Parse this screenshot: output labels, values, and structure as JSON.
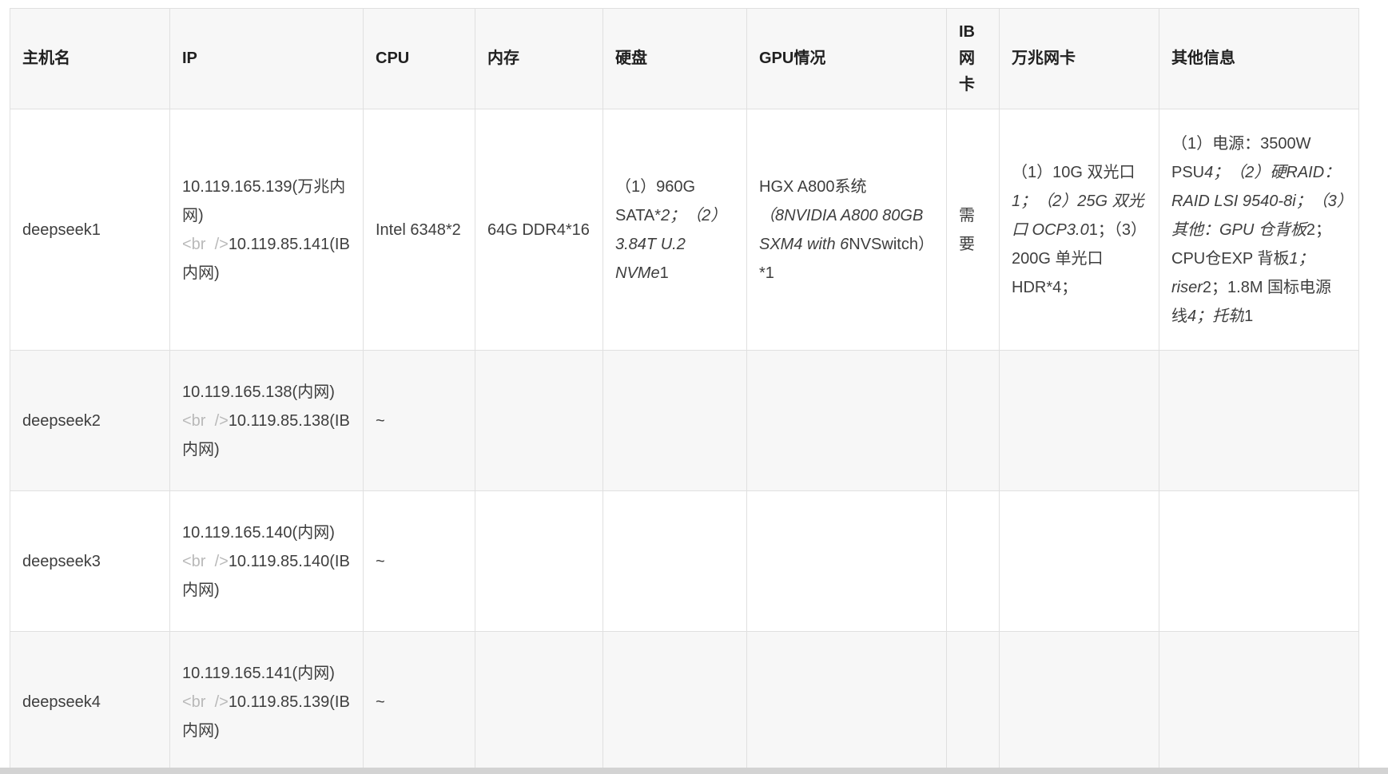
{
  "colors": {
    "header_bg": "#f7f7f7",
    "stripe_bg": "#f7f7f7",
    "border": "#e0e0e0",
    "text": "#3e3e3e",
    "header_text": "#212121",
    "br_tag_text": "#b9b9b9",
    "bottom_bar": "#d3d3d3"
  },
  "table": {
    "columns": [
      {
        "label": "主机名"
      },
      {
        "label": "IP"
      },
      {
        "label": "CPU"
      },
      {
        "label": "内存"
      },
      {
        "label": "硬盘"
      },
      {
        "label": "GPU情况"
      },
      {
        "label": "IB 网卡"
      },
      {
        "label": "万兆网卡"
      },
      {
        "label": "其他信息"
      }
    ],
    "rows": [
      {
        "hostname": [
          {
            "t": "deepseek1"
          }
        ],
        "ip": [
          {
            "t": "10.119.165.139(万兆内网)"
          },
          {
            "t": "<br  />",
            "s": "g"
          },
          {
            "t": "10.119.85.141(IB内网)"
          }
        ],
        "cpu": [
          {
            "t": "Intel 6348*2"
          }
        ],
        "memory": [
          {
            "t": "64G DDR4*16"
          }
        ],
        "disk": [
          {
            "t": "（1）960G SATA*"
          },
          {
            "t": "2；（2）3.84T U.2 NVMe",
            "s": "i"
          },
          {
            "t": "1"
          }
        ],
        "gpu": [
          {
            "t": "HGX A800系统"
          },
          {
            "t": "（8NVIDIA A800 80GB SXM4 with 6",
            "s": "i"
          },
          {
            "t": "NVSwitch）*1"
          }
        ],
        "ib": [
          {
            "t": "需要"
          }
        ],
        "nic10g": [
          {
            "t": "（1）10G 双光口"
          },
          {
            "t": "1；（2）25G 双光口 OCP3.0",
            "s": "i"
          },
          {
            "t": "1；（3）200G 单光口HDR*4；"
          }
        ],
        "other": [
          {
            "t": "（1）电源：3500W PSU"
          },
          {
            "t": "4；（2）硬RAID：RAID LSI 9540-8i；（3）其他：GPU 仓背板",
            "s": "i"
          },
          {
            "t": "2；CPU仓EXP 背板"
          },
          {
            "t": "1；riser",
            "s": "i"
          },
          {
            "t": "2；1.8M 国标电源线"
          },
          {
            "t": "4；托轨",
            "s": "i"
          },
          {
            "t": "1"
          }
        ]
      },
      {
        "hostname": [
          {
            "t": "deepseek2"
          }
        ],
        "ip": [
          {
            "t": "10.119.165.138(内网)"
          },
          {
            "t": "<br  />",
            "s": "g"
          },
          {
            "t": "10.119.85.138(IB内网)"
          }
        ],
        "cpu": [
          {
            "t": "~"
          }
        ],
        "memory": [],
        "disk": [],
        "gpu": [],
        "ib": [],
        "nic10g": [],
        "other": []
      },
      {
        "hostname": [
          {
            "t": "deepseek3"
          }
        ],
        "ip": [
          {
            "t": "10.119.165.140(内网)"
          },
          {
            "t": "<br  />",
            "s": "g"
          },
          {
            "t": "10.119.85.140(IB内网)"
          }
        ],
        "cpu": [
          {
            "t": "~"
          }
        ],
        "memory": [],
        "disk": [],
        "gpu": [],
        "ib": [],
        "nic10g": [],
        "other": []
      },
      {
        "hostname": [
          {
            "t": "deepseek4"
          }
        ],
        "ip": [
          {
            "t": "10.119.165.141(内网)"
          },
          {
            "t": "<br  />",
            "s": "g"
          },
          {
            "t": "10.119.85.139(IB内网)"
          }
        ],
        "cpu": [
          {
            "t": "~"
          }
        ],
        "memory": [],
        "disk": [],
        "gpu": [],
        "ib": [],
        "nic10g": [],
        "other": []
      }
    ]
  }
}
